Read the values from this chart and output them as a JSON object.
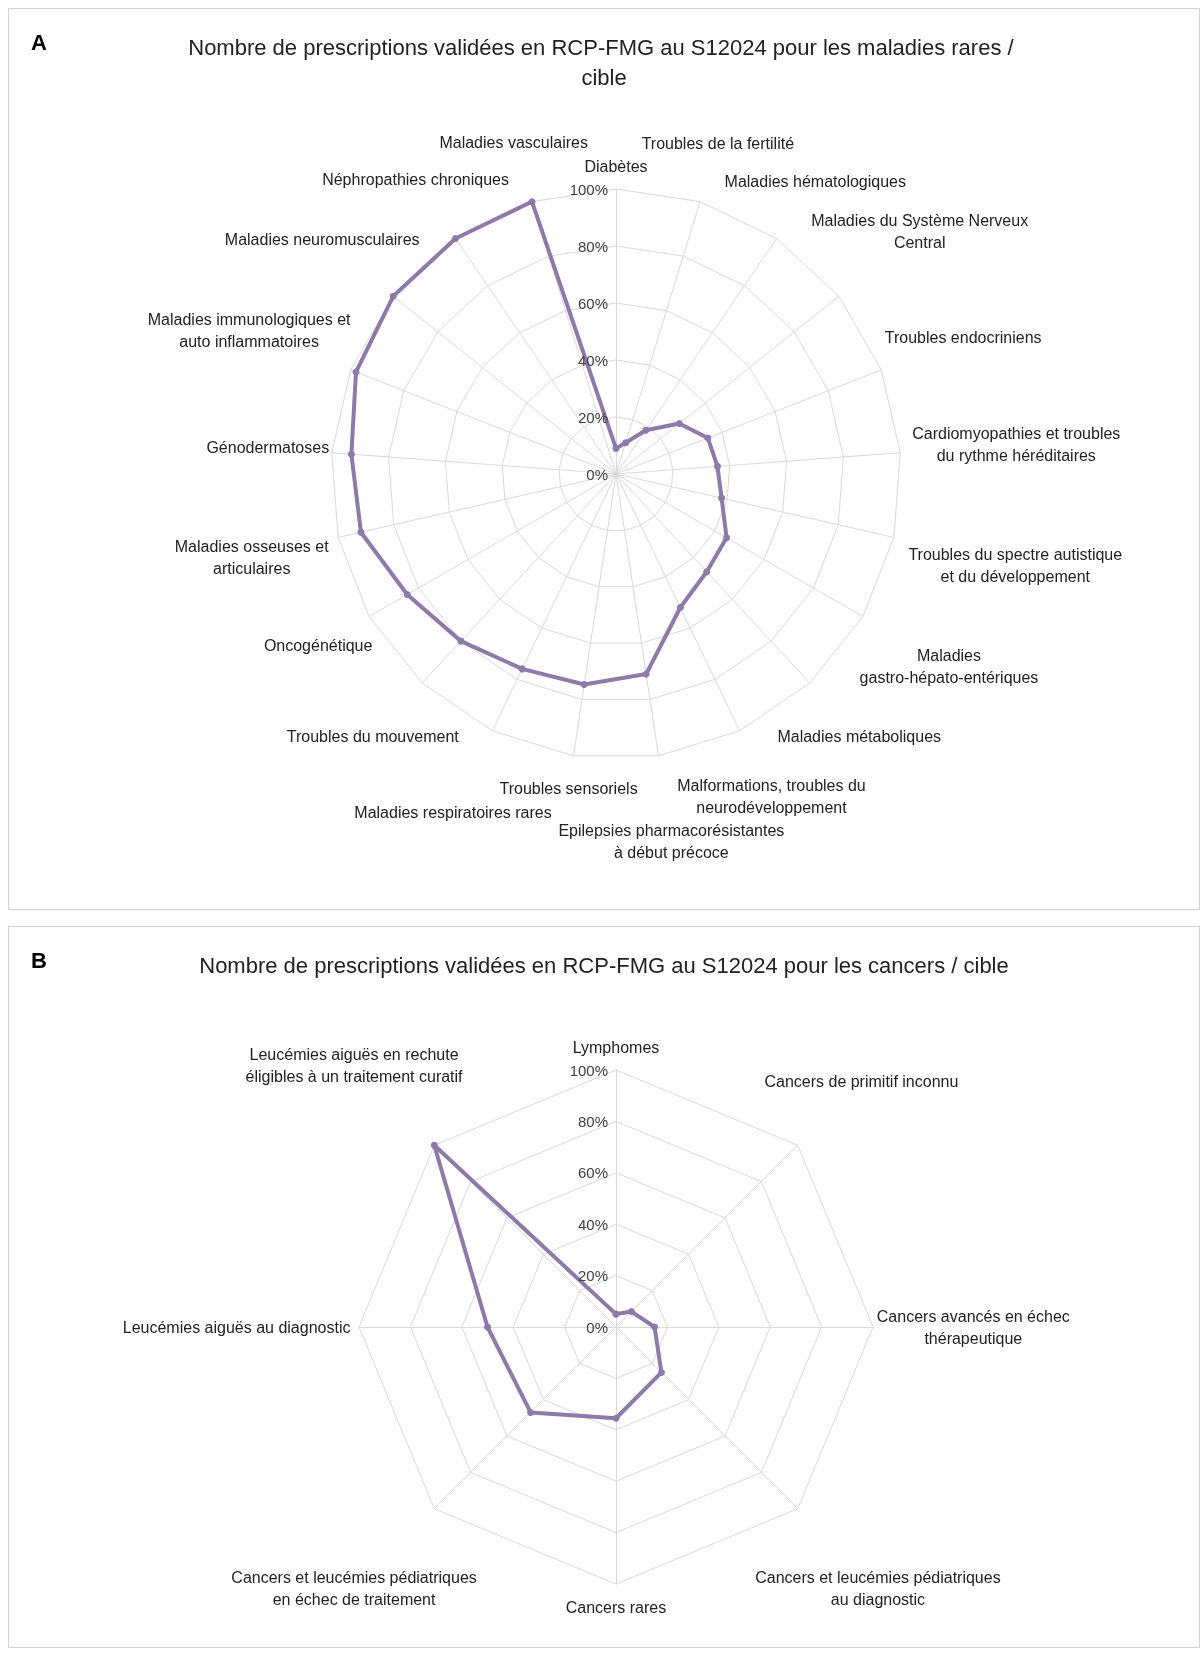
{
  "chart_data": [
    {
      "type": "radar",
      "title": "Nombre de prescriptions validées en RCP-FMG au S12024 pour les maladies rares / cible",
      "annotations": [
        "A"
      ],
      "categories": [
        "Diabètes",
        "Troubles de la fertilité",
        "Maladies hématologiques",
        "Maladies du Système Nerveux Central",
        "Troubles endocriniens",
        "Cardiomyopathies et troubles du rythme héréditaires",
        "Troubles du spectre autistique et du développement",
        "Maladies gastro-hépato-entériques",
        "Maladies métaboliques",
        "Malformations, troubles du neurodéveloppement",
        "Epilepsies pharmacorésistantes à début précoce",
        "Troubles sensoriels",
        "Maladies respiratoires rares",
        "Troubles du mouvement",
        "Oncogénétique",
        "Maladies osseuses et articulaires",
        "Génodermatoses",
        "Maladies immunologiques et auto inflammatoires",
        "Maladies neuromusculaires",
        "Néphropathies chroniques",
        "Maladies vasculaires"
      ],
      "series": [
        {
          "color": "#8c7aa9",
          "values": [
            9,
            11.5,
            18.6,
            28.4,
            34.6,
            35.7,
            38,
            44.8,
            46.8,
            52,
            71,
            74.7,
            75.9,
            80,
            84.6,
            91.8,
            93.1,
            98,
            100,
            100,
            100
          ]
        }
      ],
      "ylim": [
        0,
        100
      ],
      "yticks": [
        {
          "value": 0,
          "label": "0%"
        },
        {
          "value": 20,
          "label": "20%"
        },
        {
          "value": 40,
          "label": "40%"
        },
        {
          "value": 60,
          "label": "60%"
        },
        {
          "value": 80,
          "label": "80%"
        },
        {
          "value": 100,
          "label": "100%"
        }
      ],
      "grid": true,
      "marker": "circle"
    },
    {
      "type": "radar",
      "title": "Nombre de prescriptions validées en RCP-FMG au S12024 pour les cancers / cible",
      "annotations": [
        "B"
      ],
      "categories": [
        "Lymphomes",
        "Cancers de primitif inconnu",
        "Cancers avancés en échec thérapeutique",
        "Cancers et leucémies pédiatriques au diagnostic",
        "Cancers rares",
        "Cancers et leucémies pédiatriques en échec de traitement",
        "Leucémies aiguës au diagnostic",
        "Leucémies aiguës en rechute éligibles à un traitement curatif"
      ],
      "series": [
        {
          "color": "#8c7aa9",
          "values": [
            5,
            8.5,
            15,
            25,
            35.5,
            47,
            50,
            100
          ]
        }
      ],
      "ylim": [
        0,
        100
      ],
      "yticks": [
        {
          "value": 0,
          "label": "0%"
        },
        {
          "value": 20,
          "label": "20%"
        },
        {
          "value": 40,
          "label": "40%"
        },
        {
          "value": 60,
          "label": "60%"
        },
        {
          "value": 80,
          "label": "80%"
        },
        {
          "value": 100,
          "label": "100%"
        }
      ],
      "grid": true,
      "marker": "circle"
    }
  ]
}
